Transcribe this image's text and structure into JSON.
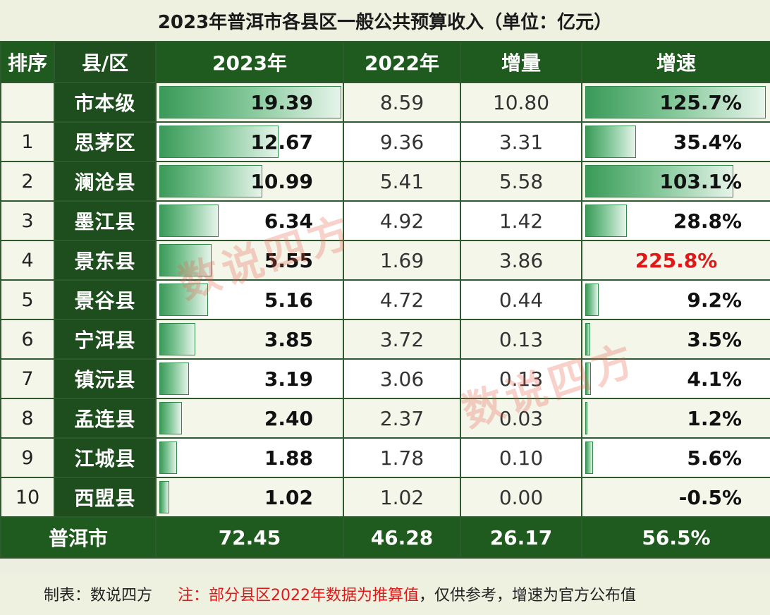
{
  "title": "2023年普洱市各县区一般公共预算收入（单位：亿元）",
  "headers": {
    "rank": "排序",
    "name": "县/区",
    "y2023": "2023年",
    "y2022": "2022年",
    "increase": "增量",
    "growth": "增速"
  },
  "rows": [
    {
      "rank": "",
      "name": "市本级",
      "v2023": "19.39",
      "v2022": "8.59",
      "inc": "10.80",
      "growth": "125.7%"
    },
    {
      "rank": "1",
      "name": "思茅区",
      "v2023": "12.67",
      "v2022": "9.36",
      "inc": "3.31",
      "growth": "35.4%"
    },
    {
      "rank": "2",
      "name": "澜沧县",
      "v2023": "10.99",
      "v2022": "5.41",
      "inc": "5.58",
      "growth": "103.1%"
    },
    {
      "rank": "3",
      "name": "墨江县",
      "v2023": "6.34",
      "v2022": "4.92",
      "inc": "1.42",
      "growth": "28.8%"
    },
    {
      "rank": "4",
      "name": "景东县",
      "v2023": "5.55",
      "v2022": "1.69",
      "inc": "3.86",
      "growth": "225.8%",
      "highlight": true
    },
    {
      "rank": "5",
      "name": "景谷县",
      "v2023": "5.16",
      "v2022": "4.72",
      "inc": "0.44",
      "growth": "9.2%"
    },
    {
      "rank": "6",
      "name": "宁洱县",
      "v2023": "3.85",
      "v2022": "3.72",
      "inc": "0.13",
      "growth": "3.5%"
    },
    {
      "rank": "7",
      "name": "镇沅县",
      "v2023": "3.19",
      "v2022": "3.06",
      "inc": "0.13",
      "growth": "4.1%"
    },
    {
      "rank": "8",
      "name": "孟连县",
      "v2023": "2.40",
      "v2022": "2.37",
      "inc": "0.03",
      "growth": "1.2%"
    },
    {
      "rank": "9",
      "name": "江城县",
      "v2023": "1.88",
      "v2022": "1.78",
      "inc": "0.10",
      "growth": "5.6%"
    },
    {
      "rank": "10",
      "name": "西盟县",
      "v2023": "1.02",
      "v2022": "1.02",
      "inc": "0.00",
      "growth": "-0.5%"
    }
  ],
  "total": {
    "name": "普洱市",
    "v2023": "72.45",
    "v2022": "46.28",
    "inc": "26.17",
    "growth": "56.5%"
  },
  "footer": {
    "source": "制表：数说四方",
    "note": "注：部分县区2022年数据为推算值",
    "rest": "，仅供参考，增速为官方公布值"
  },
  "watermark": "数说四方",
  "colors": {
    "header": "#1f5a1f",
    "bar": "#3a9a58",
    "highlight": "#e01818"
  },
  "chart_data": {
    "type": "table",
    "title": "2023年普洱市各县区一般公共预算收入（单位：亿元）",
    "columns": [
      "排序",
      "县/区",
      "2023年",
      "2022年",
      "增量",
      "增速"
    ],
    "categories": [
      "市本级",
      "思茅区",
      "澜沧县",
      "墨江县",
      "景东县",
      "景谷县",
      "宁洱县",
      "镇沅县",
      "孟连县",
      "江城县",
      "西盟县"
    ],
    "series": [
      {
        "name": "2023年",
        "values": [
          19.39,
          12.67,
          10.99,
          6.34,
          5.55,
          5.16,
          3.85,
          3.19,
          2.4,
          1.88,
          1.02
        ]
      },
      {
        "name": "2022年",
        "values": [
          8.59,
          9.36,
          5.41,
          4.92,
          1.69,
          4.72,
          3.72,
          3.06,
          2.37,
          1.78,
          1.02
        ]
      },
      {
        "name": "增量",
        "values": [
          10.8,
          3.31,
          5.58,
          1.42,
          3.86,
          0.44,
          0.13,
          0.13,
          0.03,
          0.1,
          0.0
        ]
      },
      {
        "name": "增速",
        "values": [
          125.7,
          35.4,
          103.1,
          28.8,
          225.8,
          9.2,
          3.5,
          4.1,
          1.2,
          5.6,
          -0.5
        ]
      }
    ],
    "total": {
      "2023年": 72.45,
      "2022年": 46.28,
      "增量": 26.17,
      "增速": 56.5
    }
  }
}
